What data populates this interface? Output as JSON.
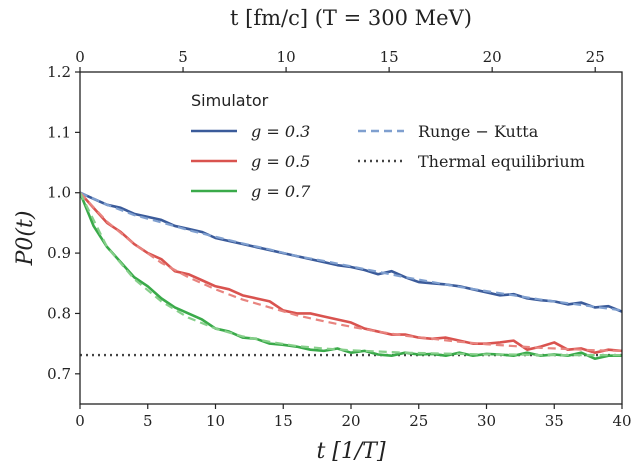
{
  "chart_data": {
    "type": "line",
    "xlabel": "t  [1/T]",
    "ylabel": "P0(t)",
    "top_xlabel": "t  [fm/c] (T = 300 MeV)",
    "xlim": [
      0,
      40
    ],
    "ylim": [
      0.65,
      1.2
    ],
    "top_xlim": [
      0,
      26.3
    ],
    "x_ticks": [
      0,
      5,
      10,
      15,
      20,
      25,
      30,
      35,
      40
    ],
    "y_ticks": [
      0.7,
      0.8,
      0.9,
      1.0,
      1.1,
      1.2
    ],
    "y_tick_labels": [
      "0.7",
      "0.8",
      "0.9",
      "1.0",
      "1.1",
      "1.2"
    ],
    "top_x_ticks": [
      0,
      5,
      10,
      15,
      20,
      25
    ],
    "grid": false,
    "legend_title": "Simulator",
    "legend_placement": "top",
    "simulator_series": [
      {
        "name": "g = 0.3",
        "color": "#3b5b9a",
        "x": [
          0,
          1,
          2,
          3,
          4,
          5,
          6,
          7,
          8,
          9,
          10,
          11,
          12,
          13,
          14,
          15,
          16,
          17,
          18,
          19,
          20,
          21,
          22,
          23,
          24,
          25,
          26,
          27,
          28,
          29,
          30,
          31,
          32,
          33,
          34,
          35,
          36,
          37,
          38,
          39,
          40
        ],
        "values": [
          1.0,
          0.99,
          0.98,
          0.975,
          0.965,
          0.96,
          0.955,
          0.945,
          0.94,
          0.935,
          0.925,
          0.92,
          0.915,
          0.91,
          0.905,
          0.9,
          0.895,
          0.89,
          0.885,
          0.88,
          0.877,
          0.872,
          0.865,
          0.87,
          0.86,
          0.852,
          0.85,
          0.848,
          0.845,
          0.84,
          0.835,
          0.83,
          0.832,
          0.825,
          0.822,
          0.82,
          0.815,
          0.818,
          0.81,
          0.812,
          0.803
        ]
      },
      {
        "name": "g = 0.5",
        "color": "#d9534f",
        "x": [
          0,
          1,
          2,
          3,
          4,
          5,
          6,
          7,
          8,
          9,
          10,
          11,
          12,
          13,
          14,
          15,
          16,
          17,
          18,
          19,
          20,
          21,
          22,
          23,
          24,
          25,
          26,
          27,
          28,
          29,
          30,
          31,
          32,
          33,
          34,
          35,
          36,
          37,
          38,
          39,
          40
        ],
        "values": [
          1.0,
          0.975,
          0.95,
          0.935,
          0.915,
          0.9,
          0.89,
          0.87,
          0.865,
          0.855,
          0.845,
          0.84,
          0.83,
          0.825,
          0.82,
          0.805,
          0.8,
          0.8,
          0.795,
          0.79,
          0.785,
          0.775,
          0.77,
          0.765,
          0.765,
          0.76,
          0.758,
          0.76,
          0.755,
          0.75,
          0.75,
          0.752,
          0.755,
          0.74,
          0.745,
          0.752,
          0.74,
          0.742,
          0.735,
          0.74,
          0.738
        ]
      },
      {
        "name": "g = 0.7",
        "color": "#3aaa4a",
        "x": [
          0,
          1,
          2,
          3,
          4,
          5,
          6,
          7,
          8,
          9,
          10,
          11,
          12,
          13,
          14,
          15,
          16,
          17,
          18,
          19,
          20,
          21,
          22,
          23,
          24,
          25,
          26,
          27,
          28,
          29,
          30,
          31,
          32,
          33,
          34,
          35,
          36,
          37,
          38,
          39,
          40
        ],
        "values": [
          1.0,
          0.945,
          0.91,
          0.885,
          0.86,
          0.845,
          0.825,
          0.81,
          0.8,
          0.79,
          0.775,
          0.77,
          0.76,
          0.758,
          0.75,
          0.748,
          0.745,
          0.74,
          0.738,
          0.742,
          0.735,
          0.738,
          0.732,
          0.73,
          0.735,
          0.732,
          0.733,
          0.73,
          0.735,
          0.73,
          0.733,
          0.732,
          0.73,
          0.735,
          0.73,
          0.732,
          0.73,
          0.735,
          0.725,
          0.73,
          0.73
        ]
      }
    ],
    "runge_kutta": {
      "label": "Runge − Kutta",
      "curves": [
        {
          "color": "#7f9fcf",
          "x": [
            0,
            2,
            4,
            6,
            8,
            10,
            12,
            14,
            16,
            18,
            20,
            22,
            24,
            26,
            28,
            30,
            32,
            34,
            36,
            38,
            40
          ],
          "values": [
            1.0,
            0.98,
            0.963,
            0.951,
            0.938,
            0.927,
            0.916,
            0.906,
            0.895,
            0.887,
            0.878,
            0.869,
            0.86,
            0.852,
            0.844,
            0.837,
            0.83,
            0.823,
            0.817,
            0.811,
            0.805
          ]
        },
        {
          "color": "#e8847f",
          "x": [
            0,
            2,
            4,
            6,
            8,
            10,
            12,
            14,
            16,
            18,
            20,
            22,
            24,
            26,
            28,
            30,
            32,
            34,
            36,
            38,
            40
          ],
          "values": [
            1.0,
            0.952,
            0.915,
            0.884,
            0.86,
            0.84,
            0.823,
            0.81,
            0.797,
            0.787,
            0.778,
            0.77,
            0.763,
            0.758,
            0.753,
            0.749,
            0.746,
            0.743,
            0.741,
            0.739,
            0.738
          ]
        },
        {
          "color": "#86cf8a",
          "x": [
            0,
            2,
            4,
            6,
            8,
            10,
            12,
            14,
            16,
            18,
            20,
            22,
            24,
            26,
            28,
            30,
            32,
            34,
            36,
            38,
            40
          ],
          "values": [
            1.0,
            0.91,
            0.857,
            0.82,
            0.793,
            0.775,
            0.762,
            0.753,
            0.746,
            0.742,
            0.739,
            0.737,
            0.735,
            0.734,
            0.733,
            0.732,
            0.732,
            0.731,
            0.731,
            0.731,
            0.731
          ]
        }
      ]
    },
    "thermal_equilibrium": {
      "label": "Thermal equilibrium",
      "value": 0.731,
      "color": "#444444"
    },
    "legend_rk_color": "#7f9fcf"
  }
}
